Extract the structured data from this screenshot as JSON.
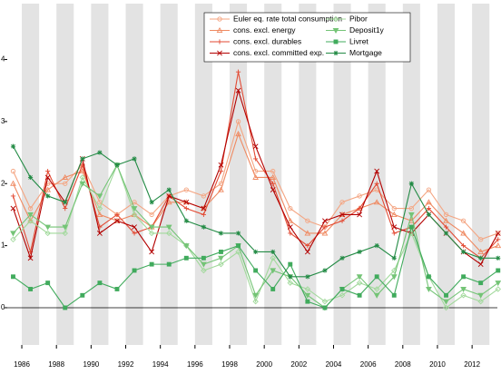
{
  "chart_data": {
    "type": "line",
    "x": [
      1985.5,
      1986.5,
      1987.5,
      1988.5,
      1989.5,
      1990.5,
      1991.5,
      1992.5,
      1993.5,
      1994.5,
      1995.5,
      1996.5,
      1997.5,
      1998.5,
      1999.5,
      2000.5,
      2001.5,
      2002.5,
      2003.5,
      2004.5,
      2005.5,
      2006.5,
      2007.5,
      2008.5,
      2009.5,
      2010.5,
      2011.5,
      2012.5,
      2013.5
    ],
    "series": [
      {
        "name": "Euler eq. rate total consumption",
        "color": "#f4a582",
        "marker": "circle",
        "values": [
          2.2,
          1.6,
          2.0,
          2.0,
          2.3,
          1.7,
          1.5,
          1.7,
          1.5,
          1.8,
          1.9,
          1.8,
          2.0,
          3.0,
          2.2,
          2.2,
          1.6,
          1.4,
          1.3,
          1.7,
          1.8,
          1.9,
          1.6,
          1.6,
          1.9,
          1.5,
          1.4,
          1.1,
          1.2
        ]
      },
      {
        "name": "cons. excl. energy",
        "color": "#ef8a62",
        "marker": "triangle-up",
        "values": [
          2.0,
          1.4,
          1.9,
          2.1,
          2.2,
          1.5,
          1.4,
          1.5,
          1.3,
          1.7,
          1.7,
          1.6,
          1.9,
          2.8,
          2.1,
          2.1,
          1.4,
          1.2,
          1.2,
          1.5,
          1.6,
          1.7,
          1.5,
          1.4,
          1.7,
          1.4,
          1.2,
          0.9,
          1.0
        ]
      },
      {
        "name": "cons. excl. durables",
        "color": "#e34a33",
        "marker": "plus",
        "values": [
          1.8,
          0.9,
          2.2,
          1.6,
          2.3,
          1.3,
          1.5,
          1.2,
          1.3,
          1.8,
          1.6,
          1.5,
          2.2,
          3.8,
          2.4,
          2.0,
          1.2,
          1.0,
          1.3,
          1.4,
          1.6,
          2.0,
          1.2,
          1.3,
          1.6,
          1.3,
          1.0,
          0.8,
          1.1
        ]
      },
      {
        "name": "cons. excl. committed exp.",
        "color": "#b30000",
        "marker": "cross",
        "values": [
          1.6,
          0.8,
          2.1,
          1.7,
          2.4,
          1.2,
          1.4,
          1.3,
          0.9,
          1.8,
          1.7,
          1.6,
          2.3,
          3.5,
          2.6,
          1.9,
          1.3,
          0.9,
          1.4,
          1.5,
          1.5,
          2.2,
          1.3,
          1.2,
          1.5,
          1.2,
          0.9,
          0.7,
          1.2
        ]
      },
      {
        "name": "Pibor",
        "color": "#a1d99b",
        "marker": "diamond",
        "values": [
          1.1,
          1.4,
          1.2,
          1.2,
          2.1,
          1.6,
          2.3,
          1.5,
          1.2,
          1.2,
          1.0,
          0.6,
          0.7,
          0.9,
          0.1,
          0.8,
          0.4,
          0.3,
          0.1,
          0.2,
          0.4,
          0.3,
          0.6,
          1.2,
          0.5,
          0.0,
          0.2,
          0.1,
          0.3
        ]
      },
      {
        "name": "Deposit1y",
        "color": "#74c476",
        "marker": "triangle-down",
        "values": [
          1.2,
          1.5,
          1.3,
          1.3,
          2.0,
          1.8,
          2.3,
          1.6,
          1.3,
          1.3,
          1.0,
          0.7,
          0.8,
          1.0,
          0.2,
          0.6,
          0.5,
          0.2,
          0.0,
          0.3,
          0.5,
          0.2,
          0.5,
          1.5,
          0.3,
          0.1,
          0.3,
          0.2,
          0.4
        ]
      },
      {
        "name": "Livret",
        "color": "#41ab5d",
        "marker": "square",
        "values": [
          0.5,
          0.3,
          0.4,
          0.0,
          0.2,
          0.4,
          0.3,
          0.6,
          0.7,
          0.7,
          0.8,
          0.8,
          0.9,
          1.0,
          0.6,
          0.3,
          0.7,
          0.1,
          0.0,
          0.3,
          0.2,
          0.5,
          0.2,
          1.3,
          0.5,
          0.2,
          0.5,
          0.4,
          0.6
        ]
      },
      {
        "name": "Mortgage",
        "color": "#238b45",
        "marker": "star",
        "values": [
          2.6,
          2.1,
          1.8,
          1.7,
          2.4,
          2.5,
          2.3,
          2.4,
          1.7,
          1.9,
          1.4,
          1.3,
          1.2,
          1.2,
          0.9,
          0.9,
          0.5,
          0.5,
          0.6,
          0.8,
          0.9,
          1.0,
          0.8,
          2.0,
          1.5,
          1.2,
          0.9,
          0.8,
          0.8
        ]
      }
    ],
    "xlim": [
      1985.16,
      2013.46
    ],
    "xticks": [
      1986,
      1988,
      1990,
      1992,
      1994,
      1996,
      1998,
      2000,
      2002,
      2004,
      2006,
      2008,
      2010,
      2012
    ],
    "ylim": [
      -0.6,
      4.9
    ],
    "yticks": [
      0,
      1,
      2,
      3,
      4
    ],
    "shaded_years": true,
    "zero_line": true,
    "legend": "upper right"
  }
}
